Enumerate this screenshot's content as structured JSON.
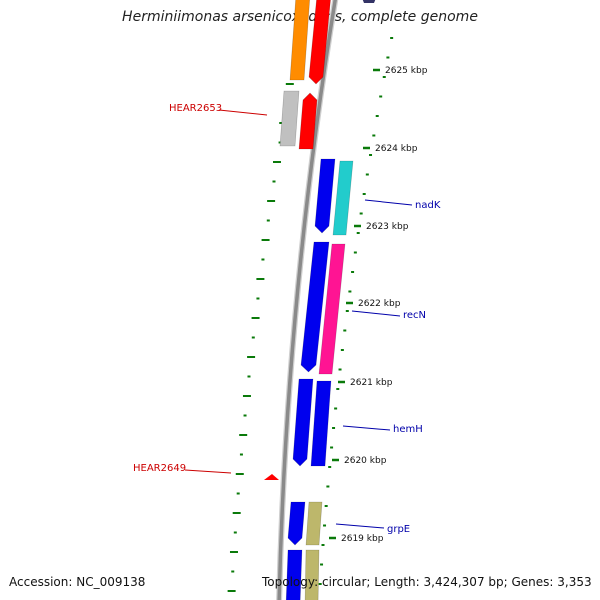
{
  "title": "Herminiimonas arsenicoxydans, complete genome",
  "accession": "Accession: NC_009138",
  "topology": "Topology: circular; Length: 3,424,307 bp; Genes: 3,353",
  "colors": {
    "backbone": "#8a8a8a",
    "tick": "#0a7a0a",
    "label_red": "#cc0000",
    "label_blue": "#0000aa",
    "orange": "#ff8c00",
    "red": "#ff0000",
    "gray": "#c0c0c0",
    "blue": "#0000ee",
    "cyan": "#22cccc",
    "pink": "#ff1493",
    "khaki": "#bdb76b",
    "navy": "#333366"
  },
  "axis_labels": [
    {
      "text": "2625 kbp",
      "kbp": 2625
    },
    {
      "text": "2624 kbp",
      "kbp": 2624
    },
    {
      "text": "2623 kbp",
      "kbp": 2623
    },
    {
      "text": "2622 kbp",
      "kbp": 2622
    },
    {
      "text": "2621 kbp",
      "kbp": 2621
    },
    {
      "text": "2620 kbp",
      "kbp": 2620
    },
    {
      "text": "2619 kbp",
      "kbp": 2619
    }
  ],
  "gene_labels": [
    {
      "text": "HEAR2653",
      "color": "label_red"
    },
    {
      "text": "nadK",
      "color": "label_blue"
    },
    {
      "text": "recN",
      "color": "label_blue"
    },
    {
      "text": "hemH",
      "color": "label_blue"
    },
    {
      "text": "HEAR2649",
      "color": "label_red"
    },
    {
      "text": "grpE",
      "color": "label_blue"
    }
  ]
}
